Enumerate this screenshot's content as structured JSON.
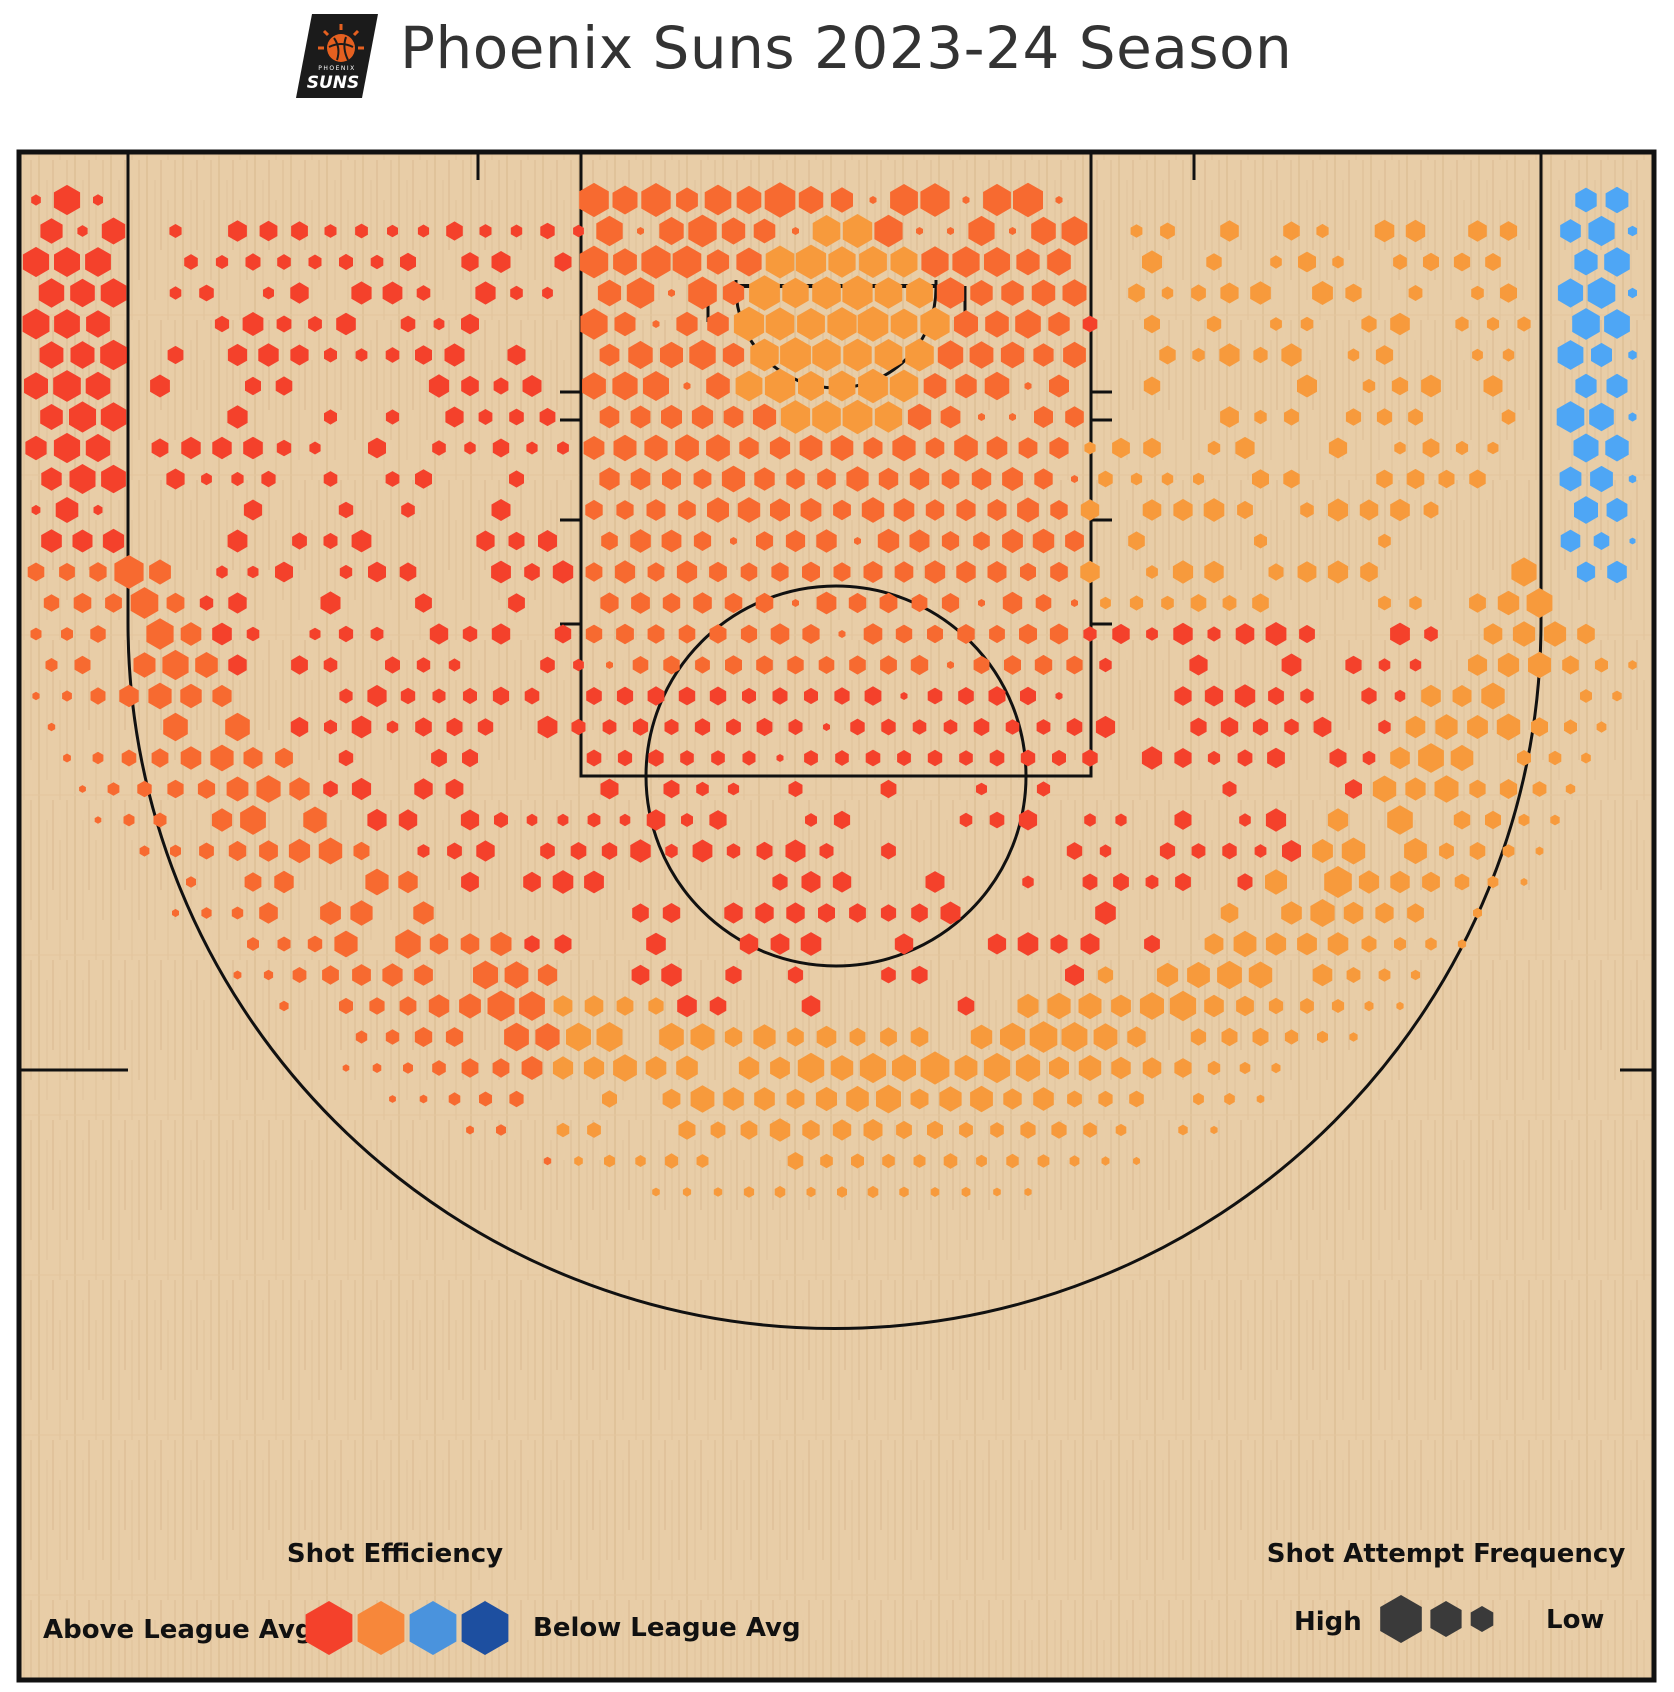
{
  "title": "Phoenix Suns 2023-24 Season",
  "logo": {
    "icon": "phoenix-suns-logo",
    "text_top": "PHOENIX",
    "text_main": "SUNS",
    "bg": "#1b1b1b",
    "accent": "#e56020"
  },
  "legend": {
    "efficiency_title": "Shot Efficiency",
    "efficiency_low_label": "Above League Avg",
    "efficiency_high_label": "Below League Avg",
    "efficiency_colors": [
      "#f4412b",
      "#f7873a",
      "#4a93dd",
      "#1d4fa0"
    ],
    "frequency_title": "Shot Attempt Frequency",
    "frequency_high_label": "High",
    "frequency_low_label": "Low",
    "frequency_color": "#3a3a3a"
  },
  "colors": {
    "red": "#f4412b",
    "orange_red": "#f76a30",
    "orange": "#f79a3c",
    "blue": "#4ea6f5",
    "court_wood": "#e8cda7",
    "court_line": "#111111"
  },
  "chart_data": {
    "type": "heatmap",
    "kind": "hexbin shot chart",
    "title": "Phoenix Suns 2023-24 Season",
    "color_scale": [
      "Above League Avg",
      "Below League Avg"
    ],
    "size_scale": [
      "High",
      "Low"
    ],
    "zones": [
      {
        "zone": "restricted area",
        "efficiency": "above league avg (orange)",
        "frequency": "high"
      },
      {
        "zone": "paint (non-RA)",
        "efficiency": "above league avg (orange-red)",
        "frequency": "high"
      },
      {
        "zone": "left mid-range",
        "efficiency": "well above league avg (red)",
        "frequency": "low-medium"
      },
      {
        "zone": "right mid-range",
        "efficiency": "above league avg (red / orange)",
        "frequency": "low-medium"
      },
      {
        "zone": "left corner three",
        "efficiency": "well above league avg (red)",
        "frequency": "high"
      },
      {
        "zone": "left wing three",
        "efficiency": "above league avg (orange-red)",
        "frequency": "high"
      },
      {
        "zone": "top of key three",
        "efficiency": "above league avg (orange)",
        "frequency": "high"
      },
      {
        "zone": "right wing three",
        "efficiency": "above league avg (orange)",
        "frequency": "high"
      },
      {
        "zone": "right corner three",
        "efficiency": "below league avg (blue)",
        "frequency": "high"
      }
    ]
  }
}
